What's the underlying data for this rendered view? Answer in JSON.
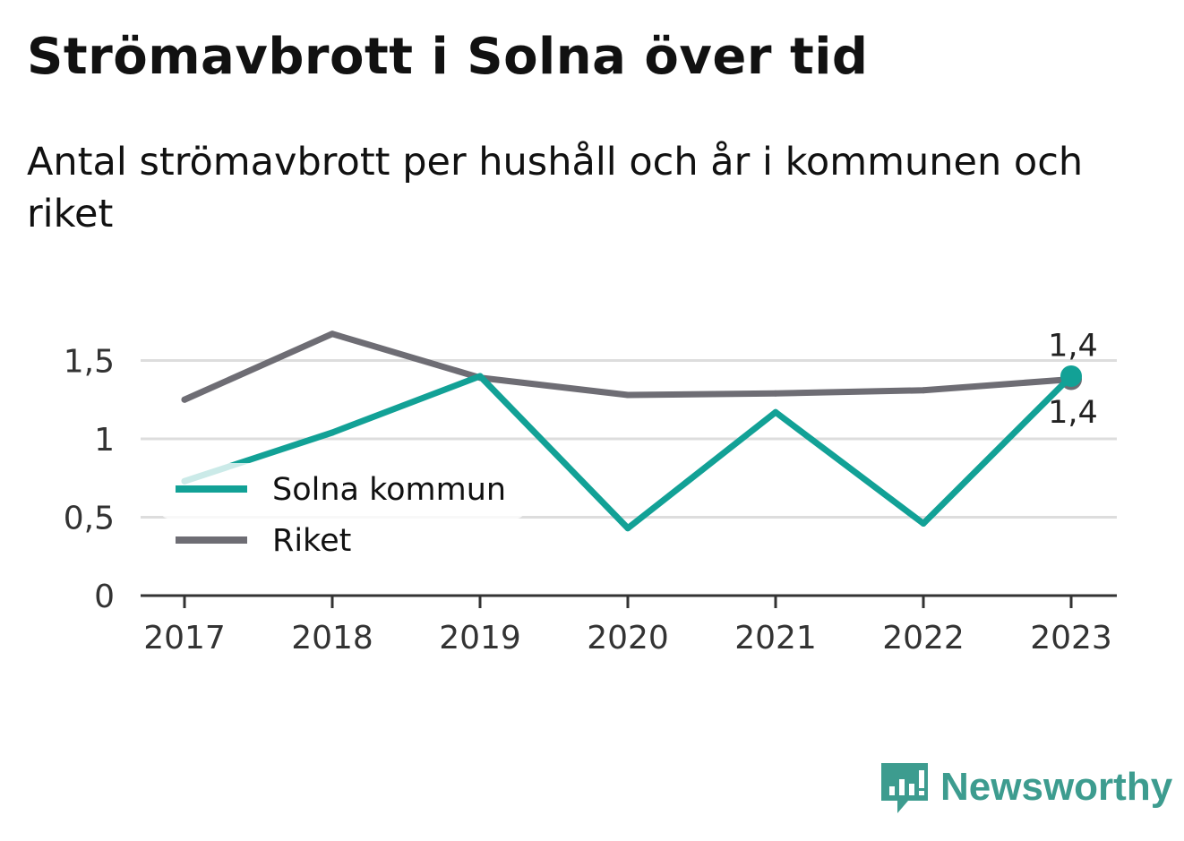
{
  "title": "Strömavbrott i Solna över tid",
  "subtitle": "Antal strömavbrott per hushåll och år i kommunen och riket",
  "brand": {
    "name": "Newsworthy",
    "icon": "newsworthy-logo-icon",
    "color": "#3d9c8f"
  },
  "chart_data": {
    "type": "line",
    "x": [
      "2017",
      "2018",
      "2019",
      "2020",
      "2021",
      "2022",
      "2023"
    ],
    "series": [
      {
        "name": "Solna kommun",
        "color": "#12a196",
        "values": [
          0.73,
          1.04,
          1.4,
          0.43,
          1.17,
          0.46,
          1.4
        ]
      },
      {
        "name": "Riket",
        "color": "#6e6d74",
        "values": [
          1.25,
          1.67,
          1.39,
          1.28,
          1.29,
          1.31,
          1.38
        ]
      }
    ],
    "ylim": [
      0,
      1.7
    ],
    "yticks": [
      0,
      0.5,
      1,
      1.5
    ],
    "ytick_labels": [
      "0",
      "0,5",
      "1",
      "1,5"
    ],
    "grid": true,
    "legend_position": "left, inside plot",
    "end_labels": [
      {
        "series": "Riket",
        "text": "1,4"
      },
      {
        "series": "Solna kommun",
        "text": "1,4"
      }
    ]
  }
}
